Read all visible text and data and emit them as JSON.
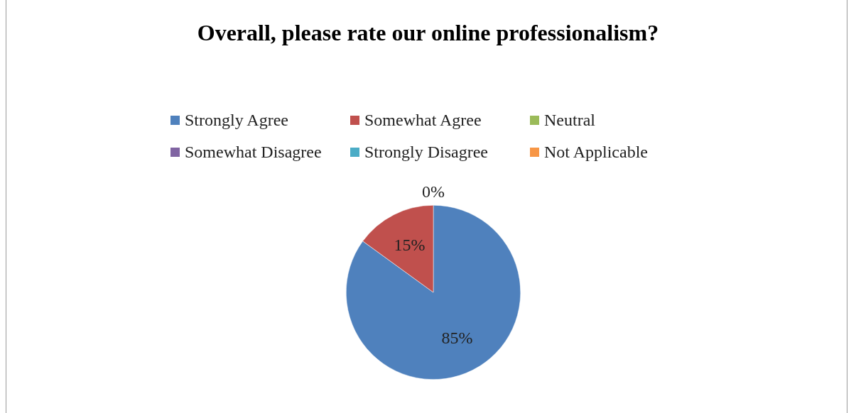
{
  "chart_data": {
    "type": "pie",
    "title": "Overall, please rate our online professionalism?",
    "categories": [
      "Strongly Agree",
      "Somewhat Agree",
      "Neutral",
      "Somewhat Disagree",
      "Strongly Disagree",
      "Not Applicable"
    ],
    "values": [
      85,
      15,
      0,
      0,
      0,
      0
    ],
    "colors": [
      "#4f81bd",
      "#c0504d",
      "#9bbb59",
      "#8064a2",
      "#4bacc6",
      "#f79646"
    ],
    "value_labels": [
      "85%",
      "15%",
      null,
      null,
      null,
      "0%"
    ],
    "legend": "top"
  }
}
